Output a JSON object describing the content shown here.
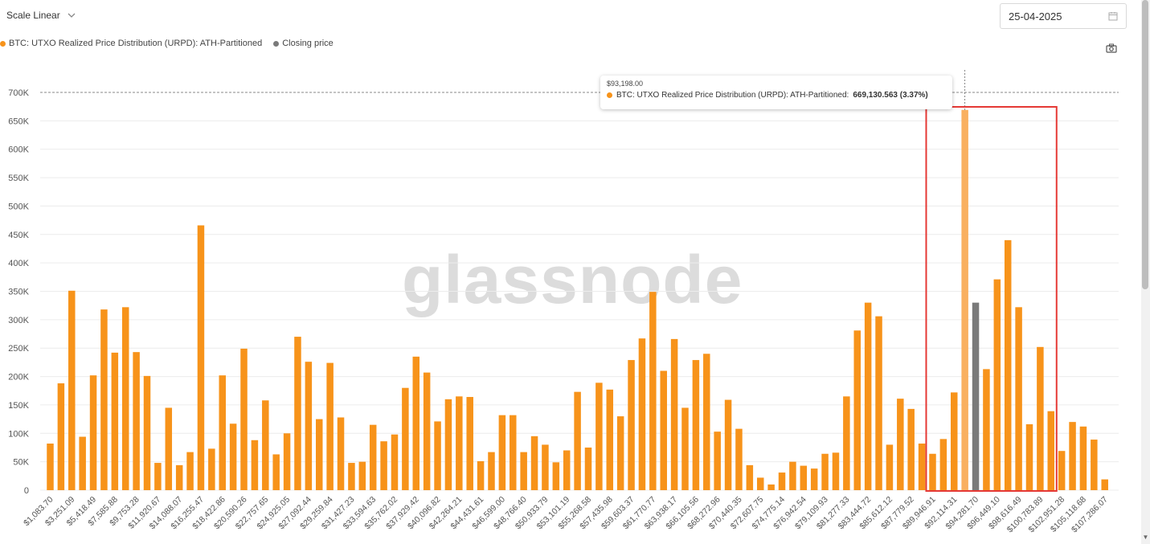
{
  "toolbar": {
    "scale_label": "Scale Linear",
    "date_value": "25-04-2025"
  },
  "legend": [
    {
      "label": "BTC: UTXO Realized Price Distribution (URPD): ATH-Partitioned",
      "color": "#F7931A"
    },
    {
      "label": "Closing price",
      "color": "#7a7a7a"
    }
  ],
  "watermark": "glassnode",
  "tooltip": {
    "date": "$93,198.00",
    "series": "BTC: UTXO Realized Price Distribution (URPD): ATH-Partitioned:",
    "value": "669,130.563 (3.37%)"
  },
  "chart_data": {
    "type": "bar",
    "ylim": [
      0,
      700000
    ],
    "yticks": [
      "0",
      "50K",
      "100K",
      "150K",
      "200K",
      "250K",
      "300K",
      "350K",
      "400K",
      "450K",
      "500K",
      "550K",
      "600K",
      "650K",
      "700K"
    ],
    "x_tick_labels": [
      "$1,083.70",
      "$3,251.09",
      "$5,418.49",
      "$7,585.88",
      "$9,753.28",
      "$11,920.67",
      "$14,088.07",
      "$16,255.47",
      "$18,422.86",
      "$20,590.26",
      "$22,757.65",
      "$24,925.05",
      "$27,092.44",
      "$29,259.84",
      "$31,427.23",
      "$33,594.63",
      "$35,762.02",
      "$37,929.42",
      "$40,096.82",
      "$42,264.21",
      "$44,431.61",
      "$46,599.00",
      "$48,766.40",
      "$50,933.79",
      "$53,101.19",
      "$55,268.58",
      "$57,435.98",
      "$59,603.37",
      "$61,770.77",
      "$63,938.17",
      "$66,105.56",
      "$68,272.96",
      "$70,440.35",
      "$72,607.75",
      "$74,775.14",
      "$76,942.54",
      "$79,109.93",
      "$81,277.33",
      "$83,444.72",
      "$85,612.12",
      "$87,779.52",
      "$89,946.91",
      "$92,114.31",
      "$94,281.70",
      "$96,449.10",
      "$98,616.49",
      "$100,783.89",
      "$102,951.28",
      "$105,118.68",
      "$107,286.07"
    ],
    "series": [
      {
        "name": "BTC: UTXO Realized Price Distribution (URPD): ATH-Partitioned",
        "color": "#F7931A",
        "values": [
          82000,
          188000,
          351000,
          94000,
          202000,
          318000,
          242000,
          322000,
          243000,
          201000,
          48000,
          145000,
          44000,
          67000,
          466000,
          73000,
          202000,
          117000,
          249000,
          88000,
          158000,
          63000,
          100000,
          270000,
          226000,
          125000,
          224000,
          128000,
          48000,
          50000,
          115000,
          86000,
          98000,
          180000,
          235000,
          207000,
          121000,
          160000,
          165000,
          164000,
          51000,
          67000,
          132000,
          132000,
          67000,
          95000,
          80000,
          49000,
          70000,
          173000,
          75000,
          189000,
          177000,
          130000,
          229000,
          267000,
          349000,
          210000,
          266000,
          145000,
          229000,
          240000,
          103000,
          159000,
          108000,
          44000,
          22000,
          10000,
          31000,
          50000,
          43000,
          38000,
          64000,
          66000,
          165000,
          281000,
          330000,
          306000,
          80000,
          161000,
          143000,
          82000,
          64000,
          90000,
          172000,
          669131,
          null,
          213000,
          371000,
          440000,
          322000,
          116000,
          252000,
          139000,
          69000,
          120000,
          112000,
          89000,
          19000
        ]
      },
      {
        "name": "Closing price",
        "color": "#7a7a7a",
        "bin_index": 86,
        "value": 330000
      }
    ],
    "highlight": {
      "bin_index": 85,
      "label": "$93,198.00"
    },
    "annotation_box": {
      "from_bin": 82,
      "to_bin": 93,
      "color": "#e53935"
    }
  }
}
